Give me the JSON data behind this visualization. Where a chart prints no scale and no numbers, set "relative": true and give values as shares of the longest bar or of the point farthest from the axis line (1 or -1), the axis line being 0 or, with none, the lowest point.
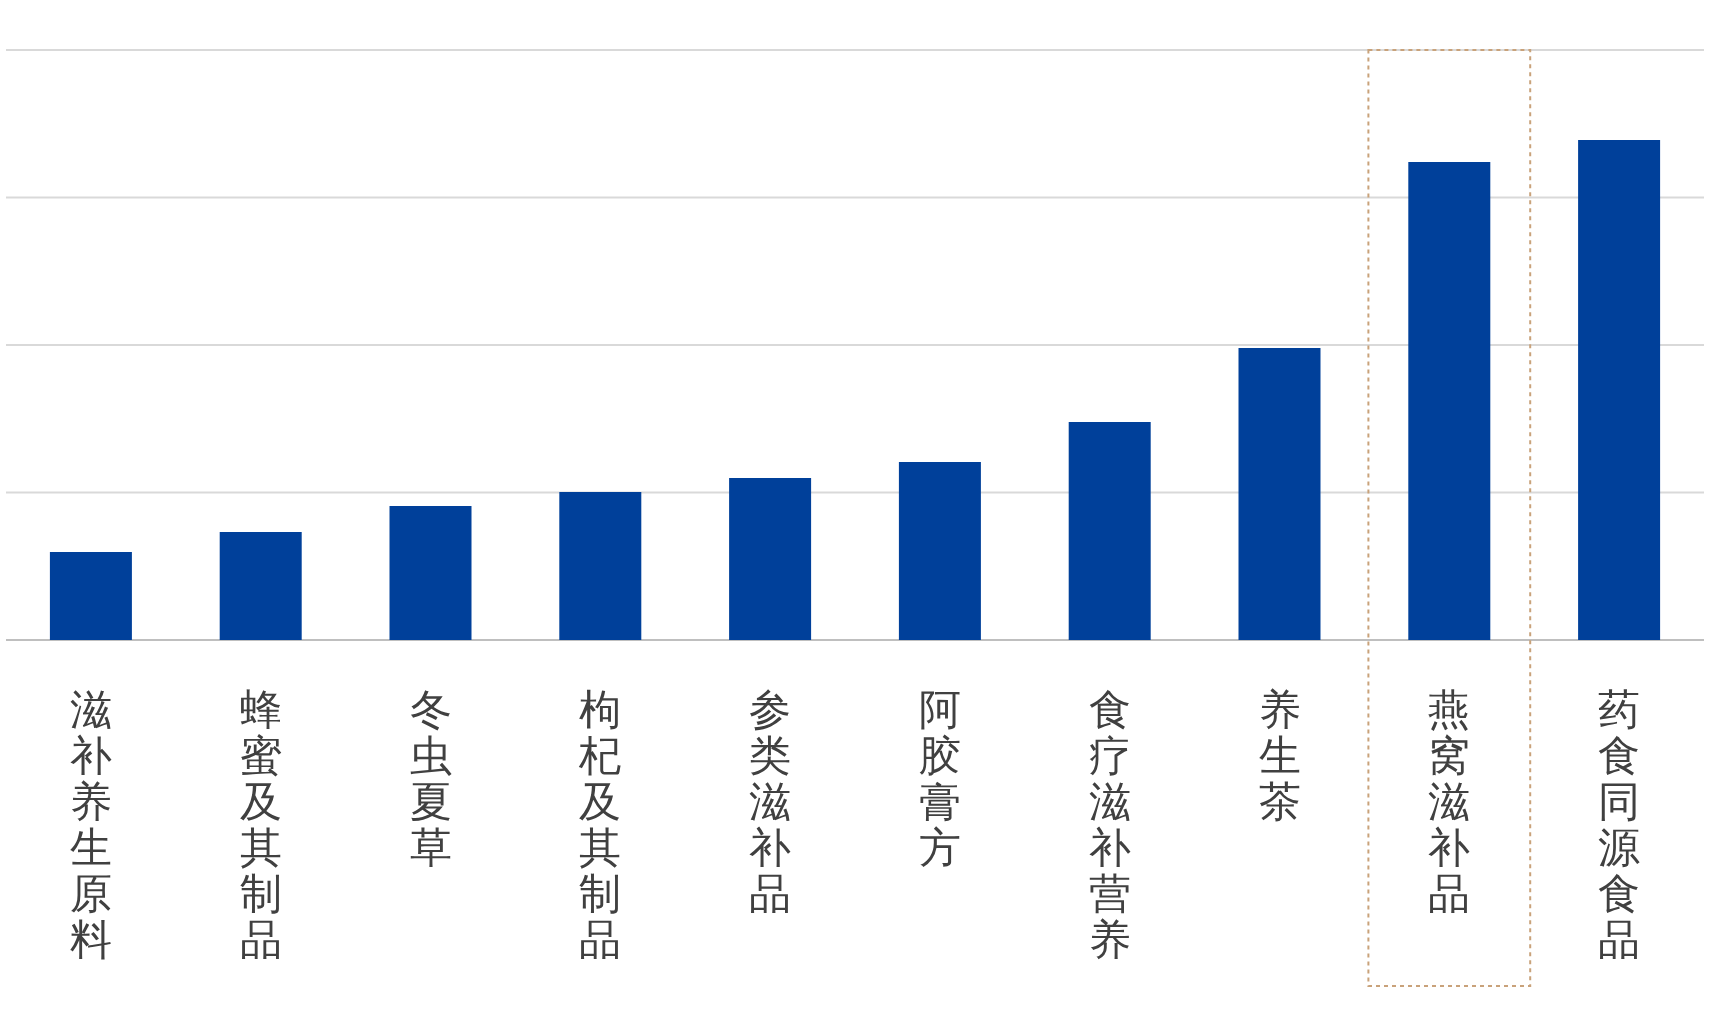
{
  "chart_data": {
    "type": "bar",
    "relative": true,
    "grid": "y",
    "color": "#00409a",
    "categories": [
      "滋补养生原料",
      "蜂蜜及其制品",
      "冬虫夏草",
      "枸杞及其制品",
      "参类滋补品",
      "阿胶膏方",
      "食疗滋补营养",
      "养生茶",
      "燕窝滋补品",
      "药食同源食品"
    ],
    "values": [
      0.176,
      0.216,
      0.268,
      0.296,
      0.324,
      0.356,
      0.436,
      0.584,
      0.956,
      1
    ]
  }
}
